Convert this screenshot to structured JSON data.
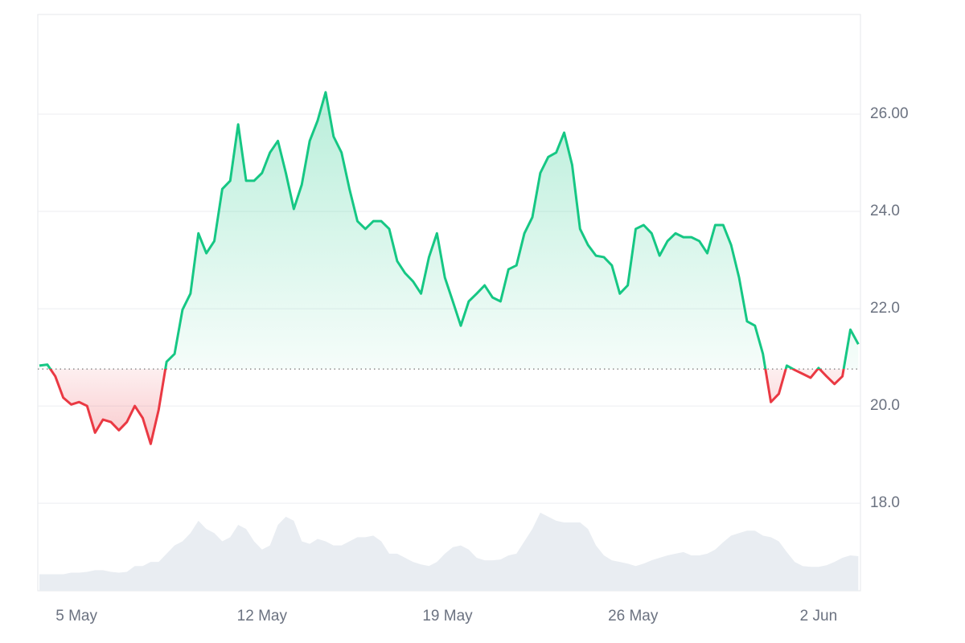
{
  "chart_data": {
    "type": "line",
    "x": [
      3.6,
      3.9,
      4.2,
      4.5,
      4.8,
      5.1,
      5.4,
      5.7,
      6.0,
      6.3,
      6.6,
      6.9,
      7.2,
      7.5,
      7.8,
      8.1,
      8.4,
      8.7,
      9.0,
      9.3,
      9.6,
      9.9,
      10.2,
      10.5,
      10.8,
      11.1,
      11.4,
      11.7,
      12.0,
      12.3,
      12.6,
      12.9,
      13.2,
      13.5,
      13.8,
      14.1,
      14.4,
      14.7,
      15.0,
      15.3,
      15.6,
      15.9,
      16.2,
      16.5,
      16.8,
      17.1,
      17.4,
      17.7,
      18.0,
      18.3,
      18.6,
      18.9,
      19.2,
      19.5,
      19.8,
      20.1,
      20.4,
      20.7,
      21.0,
      21.3,
      21.6,
      21.9,
      22.2,
      22.5,
      22.8,
      23.1,
      23.4,
      23.7,
      24.0,
      24.3,
      24.6,
      24.9,
      25.2,
      25.5,
      25.8,
      26.1,
      26.4,
      26.7,
      27.0,
      27.3,
      27.6,
      27.9,
      28.2,
      28.5,
      28.8,
      29.1,
      29.4,
      29.7,
      30.0,
      30.3,
      30.6,
      30.9,
      31.2,
      31.5,
      31.8,
      32.1,
      32.4,
      32.7,
      33.0,
      33.3,
      33.6,
      33.9,
      34.2,
      34.5
    ],
    "values": [
      20.83,
      20.85,
      20.61,
      20.17,
      20.03,
      20.08,
      20.0,
      19.45,
      19.72,
      19.67,
      19.5,
      19.67,
      20.0,
      19.75,
      19.22,
      19.92,
      20.91,
      21.07,
      21.98,
      22.31,
      23.55,
      23.14,
      23.39,
      24.46,
      24.63,
      25.79,
      24.63,
      24.63,
      24.79,
      25.21,
      25.45,
      24.79,
      24.05,
      24.55,
      25.45,
      25.87,
      26.45,
      25.54,
      25.21,
      24.46,
      23.8,
      23.64,
      23.8,
      23.8,
      23.64,
      22.98,
      22.73,
      22.56,
      22.31,
      23.06,
      23.55,
      22.64,
      22.15,
      21.65,
      22.15,
      22.31,
      22.48,
      22.23,
      22.15,
      22.81,
      22.89,
      23.55,
      23.88,
      24.79,
      25.12,
      25.21,
      25.62,
      24.96,
      23.64,
      23.31,
      23.09,
      23.06,
      22.89,
      22.31,
      22.48,
      23.64,
      23.72,
      23.55,
      23.09,
      23.39,
      23.55,
      23.47,
      23.47,
      23.39,
      23.14,
      23.72,
      23.72,
      23.31,
      22.64,
      21.74,
      21.65,
      21.07,
      20.08,
      20.25,
      20.83,
      20.74,
      20.66,
      20.58,
      20.78,
      20.61,
      20.45,
      20.61,
      21.57,
      21.27
    ],
    "baseline": 20.76,
    "colors": {
      "above": "#16c784",
      "below": "#ea3943"
    },
    "volume": {
      "color": "#e9edf2",
      "axis": "y2",
      "values": [
        20,
        20,
        20,
        20,
        22,
        22,
        23,
        25,
        25,
        23,
        22,
        23,
        30,
        30,
        35,
        35,
        45,
        55,
        60,
        70,
        85,
        75,
        70,
        60,
        65,
        80,
        75,
        60,
        50,
        55,
        80,
        90,
        85,
        60,
        57,
        63,
        60,
        55,
        55,
        60,
        65,
        65,
        67,
        60,
        45,
        45,
        40,
        35,
        32,
        30,
        35,
        45,
        53,
        55,
        50,
        40,
        37,
        37,
        38,
        43,
        45,
        60,
        75,
        95,
        90,
        85,
        83,
        83,
        83,
        75,
        55,
        43,
        37,
        35,
        33,
        30,
        33,
        37,
        40,
        43,
        45,
        47,
        43,
        43,
        45,
        50,
        59,
        67,
        70,
        73,
        73,
        67,
        65,
        60,
        47,
        35,
        30,
        29,
        29,
        31,
        35,
        40,
        43,
        42
      ]
    },
    "xlim": [
      3.54,
      34.58
    ],
    "xticks": [
      {
        "value": 5,
        "label": "5 May"
      },
      {
        "value": 12,
        "label": "12 May"
      },
      {
        "value": 19,
        "label": "19 May"
      },
      {
        "value": 26,
        "label": "26 May"
      },
      {
        "value": 33,
        "label": "2 Jun"
      }
    ],
    "ylim": [
      16.2,
      28.05
    ],
    "yticks": [
      {
        "value": 18,
        "label": "18.0"
      },
      {
        "value": 20,
        "label": "20.0"
      },
      {
        "value": 22,
        "label": "22.0"
      },
      {
        "value": 24,
        "label": "24.0"
      },
      {
        "value": 26,
        "label": "26.00"
      }
    ],
    "y2lim": [
      0,
      700
    ],
    "grid": true
  }
}
